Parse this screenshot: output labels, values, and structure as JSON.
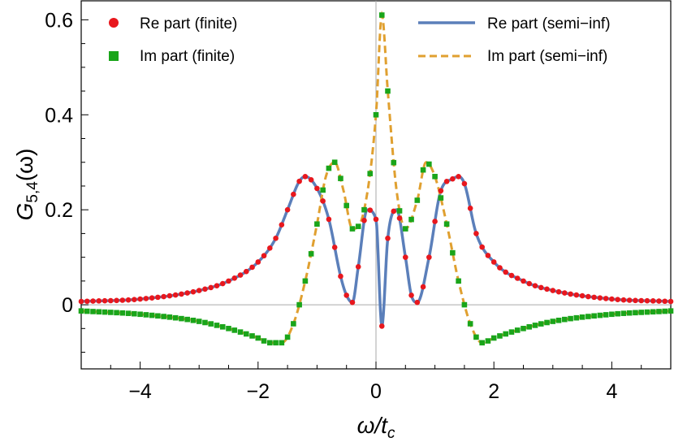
{
  "chart_data": {
    "type": "line",
    "title": "",
    "xlabel": "ω/t_c",
    "xlabel_main": "ω/t",
    "xlabel_sub": "c",
    "ylabel": "G_{5,4}(ω)",
    "ylabel_main": "G",
    "ylabel_sub": "5,4",
    "ylabel_arg": "(ω)",
    "xlim": [
      -5,
      5
    ],
    "ylim": [
      -0.135,
      0.64
    ],
    "xticks": [
      -4,
      -2,
      0,
      2,
      4
    ],
    "xtick_labels": [
      "−4",
      "−2",
      "0",
      "2",
      "4"
    ],
    "yticks": [
      0,
      0.2,
      0.4,
      0.6
    ],
    "ytick_labels": [
      "0",
      "0.2",
      "0.4",
      "0.6"
    ],
    "legend_position": "top",
    "series": [
      {
        "name": "Re part (finite)",
        "style": "markers-circle",
        "color": "#e8171d",
        "anchors_x": [
          -5,
          -4,
          -3,
          -2.5,
          -2,
          -1.7,
          -1.5,
          -1.3,
          -1.2,
          -1.0,
          -0.8,
          -0.6,
          -0.5,
          -0.4,
          -0.3,
          -0.15,
          0.0,
          0.1,
          0.2,
          0.35,
          0.5,
          0.6,
          0.7,
          0.9,
          1.1,
          1.3,
          1.4,
          1.5,
          1.7,
          2.0,
          2.5,
          3.0,
          4.0,
          5.0
        ],
        "anchors_y": [
          0.007,
          0.012,
          0.03,
          0.05,
          0.09,
          0.14,
          0.2,
          0.26,
          0.27,
          0.245,
          0.18,
          0.06,
          0.02,
          0.005,
          0.08,
          0.2,
          0.18,
          -0.045,
          0.14,
          0.2,
          0.1,
          0.02,
          0.005,
          0.1,
          0.24,
          0.265,
          0.27,
          0.255,
          0.15,
          0.09,
          0.05,
          0.03,
          0.012,
          0.007
        ]
      },
      {
        "name": "Im part (finite)",
        "style": "markers-square",
        "color": "#1aa51a",
        "anchors_x": [
          -5,
          -4,
          -3,
          -2.5,
          -2.0,
          -1.8,
          -1.6,
          -1.4,
          -1.2,
          -1.0,
          -0.85,
          -0.7,
          -0.55,
          -0.4,
          -0.2,
          0.0,
          0.1,
          0.2,
          0.35,
          0.5,
          0.7,
          0.85,
          1.0,
          1.2,
          1.4,
          1.6,
          1.8,
          2.0,
          2.5,
          3.0,
          4.0,
          5.0
        ],
        "anchors_y": [
          -0.013,
          -0.02,
          -0.035,
          -0.05,
          -0.07,
          -0.08,
          -0.08,
          -0.04,
          0.05,
          0.17,
          0.27,
          0.3,
          0.24,
          0.16,
          0.2,
          0.4,
          0.61,
          0.45,
          0.24,
          0.16,
          0.22,
          0.3,
          0.27,
          0.17,
          0.05,
          -0.04,
          -0.08,
          -0.07,
          -0.05,
          -0.035,
          -0.02,
          -0.013
        ]
      },
      {
        "name": "Re part (semi−inf)",
        "style": "solid",
        "color": "#5b7fba"
      },
      {
        "name": "Im part (semi−inf)",
        "style": "dashed",
        "color": "#e0a030"
      }
    ]
  }
}
